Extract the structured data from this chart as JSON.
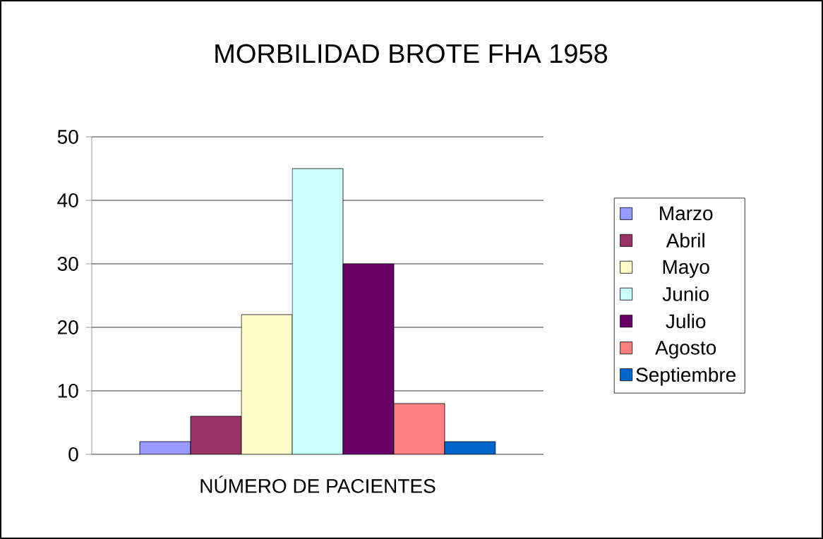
{
  "chart_data": {
    "type": "bar",
    "title": "MORBILIDAD BROTE FHA 1958",
    "categories": [
      "NÚMERO DE PACIENTES"
    ],
    "series": [
      {
        "name": "Marzo",
        "color": "#9999ff",
        "values": [
          2
        ]
      },
      {
        "name": "Abril",
        "color": "#993366",
        "values": [
          6
        ]
      },
      {
        "name": "Mayo",
        "color": "#ffffcc",
        "values": [
          22
        ]
      },
      {
        "name": "Junio",
        "color": "#ccffff",
        "values": [
          45
        ]
      },
      {
        "name": "Julio",
        "color": "#660066",
        "values": [
          30
        ]
      },
      {
        "name": "Agosto",
        "color": "#ff8080",
        "values": [
          8
        ]
      },
      {
        "name": "Septiembre",
        "color": "#0066cc",
        "values": [
          2
        ]
      }
    ],
    "ylim": [
      0,
      50
    ],
    "yticks": [
      0,
      10,
      20,
      30,
      40,
      50
    ],
    "grid": "y",
    "legend": "right"
  }
}
